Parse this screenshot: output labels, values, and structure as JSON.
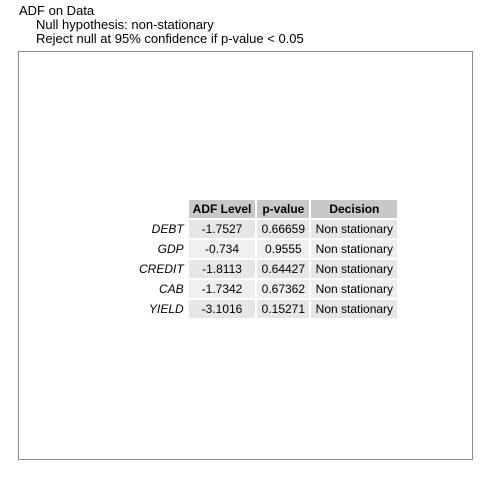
{
  "title": {
    "main": "ADF on Data",
    "hypothesis": "Null hypothesis: non-stationary",
    "rule": "Reject null at 95% confidence if p-value < 0.05"
  },
  "table": {
    "columns": [
      "ADF Level",
      "p-value",
      "Decision"
    ],
    "rows": [
      {
        "name": "DEBT",
        "adf": "-1.7527",
        "p": "0.66659",
        "decision": "Non stationary"
      },
      {
        "name": "GDP",
        "adf": "-0.734",
        "p": "0.9555",
        "decision": "Non stationary"
      },
      {
        "name": "CREDIT",
        "adf": "-1.8113",
        "p": "0.64427",
        "decision": "Non stationary"
      },
      {
        "name": "CAB",
        "adf": "-1.7342",
        "p": "0.67362",
        "decision": "Non stationary"
      },
      {
        "name": "YIELD",
        "adf": "-3.1016",
        "p": "0.15271",
        "decision": "Non stationary"
      }
    ]
  },
  "colors": {
    "header_fill": "#c8c8c8",
    "row_fill_odd": "#e6e6e6",
    "row_fill_even": "#efefef",
    "panel_border": "#8c8c8c"
  }
}
